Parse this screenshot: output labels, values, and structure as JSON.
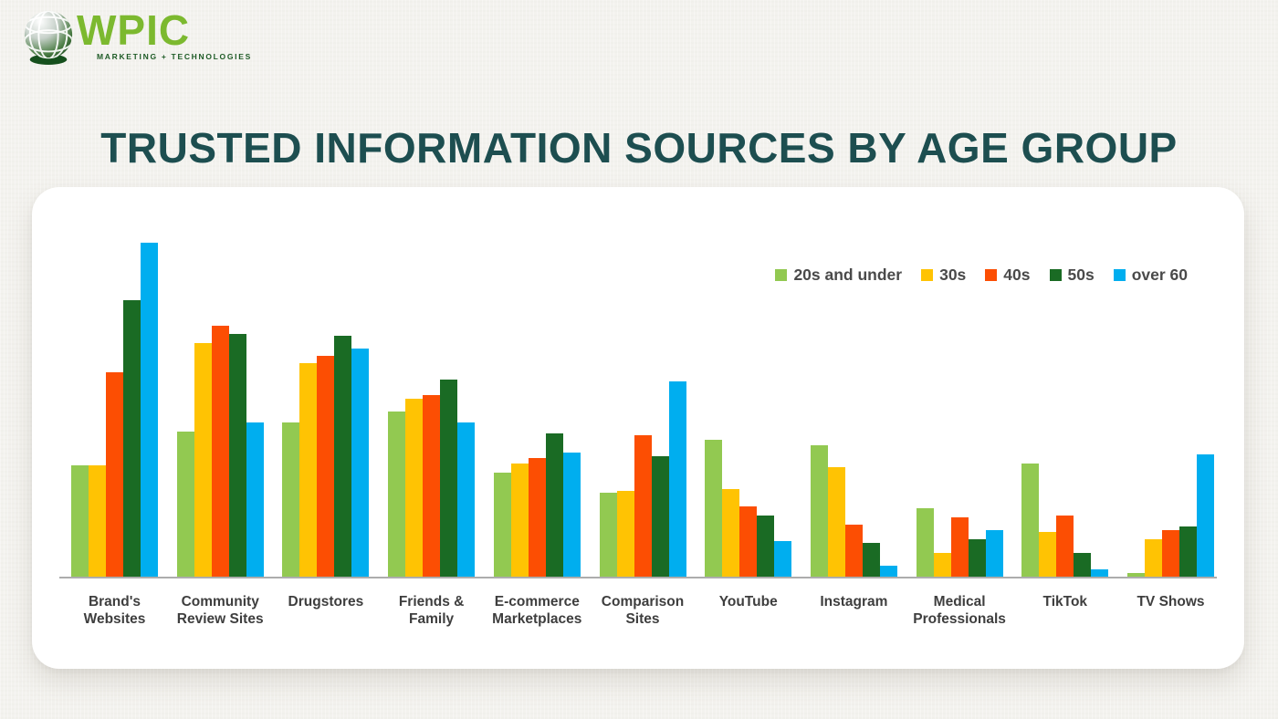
{
  "logo": {
    "brand": "WPIC",
    "tagline": "MARKETING + TECHNOLOGIES"
  },
  "title": "TRUSTED INFORMATION SOURCES BY AGE GROUP",
  "chart_data": {
    "type": "bar",
    "title": "TRUSTED INFORMATION SOURCES BY AGE GROUP",
    "categories": [
      "Brand's\nWebsites",
      "Community\nReview Sites",
      "Drugstores",
      "Friends &\nFamily",
      "E-commerce\nMarketplaces",
      "Comparison\nSites",
      "YouTube",
      "Instagram",
      "Medical\nProfessionals",
      "TikTok",
      "TV Shows"
    ],
    "series": [
      {
        "name": "20s and under",
        "color": "#92c951",
        "values": [
          30,
          39,
          41.5,
          44.5,
          28,
          22.5,
          37,
          35.5,
          18.5,
          30.5,
          1
        ]
      },
      {
        "name": "30s",
        "color": "#ffc303",
        "values": [
          30,
          63,
          57.5,
          48,
          30.5,
          23,
          23.5,
          29.5,
          6.5,
          12,
          10
        ]
      },
      {
        "name": "40s",
        "color": "#fc4e03",
        "values": [
          55,
          67.5,
          59.5,
          49,
          32,
          38,
          19,
          14,
          16,
          16.5,
          12.5
        ]
      },
      {
        "name": "50s",
        "color": "#1a6b24",
        "values": [
          74.5,
          65.5,
          65,
          53,
          38.5,
          32.5,
          16.5,
          9,
          10,
          6.5,
          13.5
        ]
      },
      {
        "name": "over 60",
        "color": "#00aeef",
        "values": [
          90,
          41.5,
          61.5,
          41.5,
          33.5,
          52.5,
          9.5,
          3,
          12.5,
          2,
          33
        ]
      }
    ],
    "ylim": [
      0,
      100
    ],
    "y_axis_shown": false,
    "x_axis_line": true,
    "grid": false,
    "legend_position": "top-right",
    "value_note": "No numeric axis is shown in the figure; values are estimated on a relative 0-100 scale from bar heights (tallest bar = 90)"
  },
  "colors": {
    "page_bg": "#f3f2ee",
    "card_bg": "#ffffff",
    "title_text": "#1d4e50",
    "legend_text": "#4a4a4a",
    "category_label_text": "#3e3e3e",
    "axis_line": "#adadad",
    "logo_green": "#7cb92f",
    "logo_tagline_green": "#1e5b26"
  }
}
